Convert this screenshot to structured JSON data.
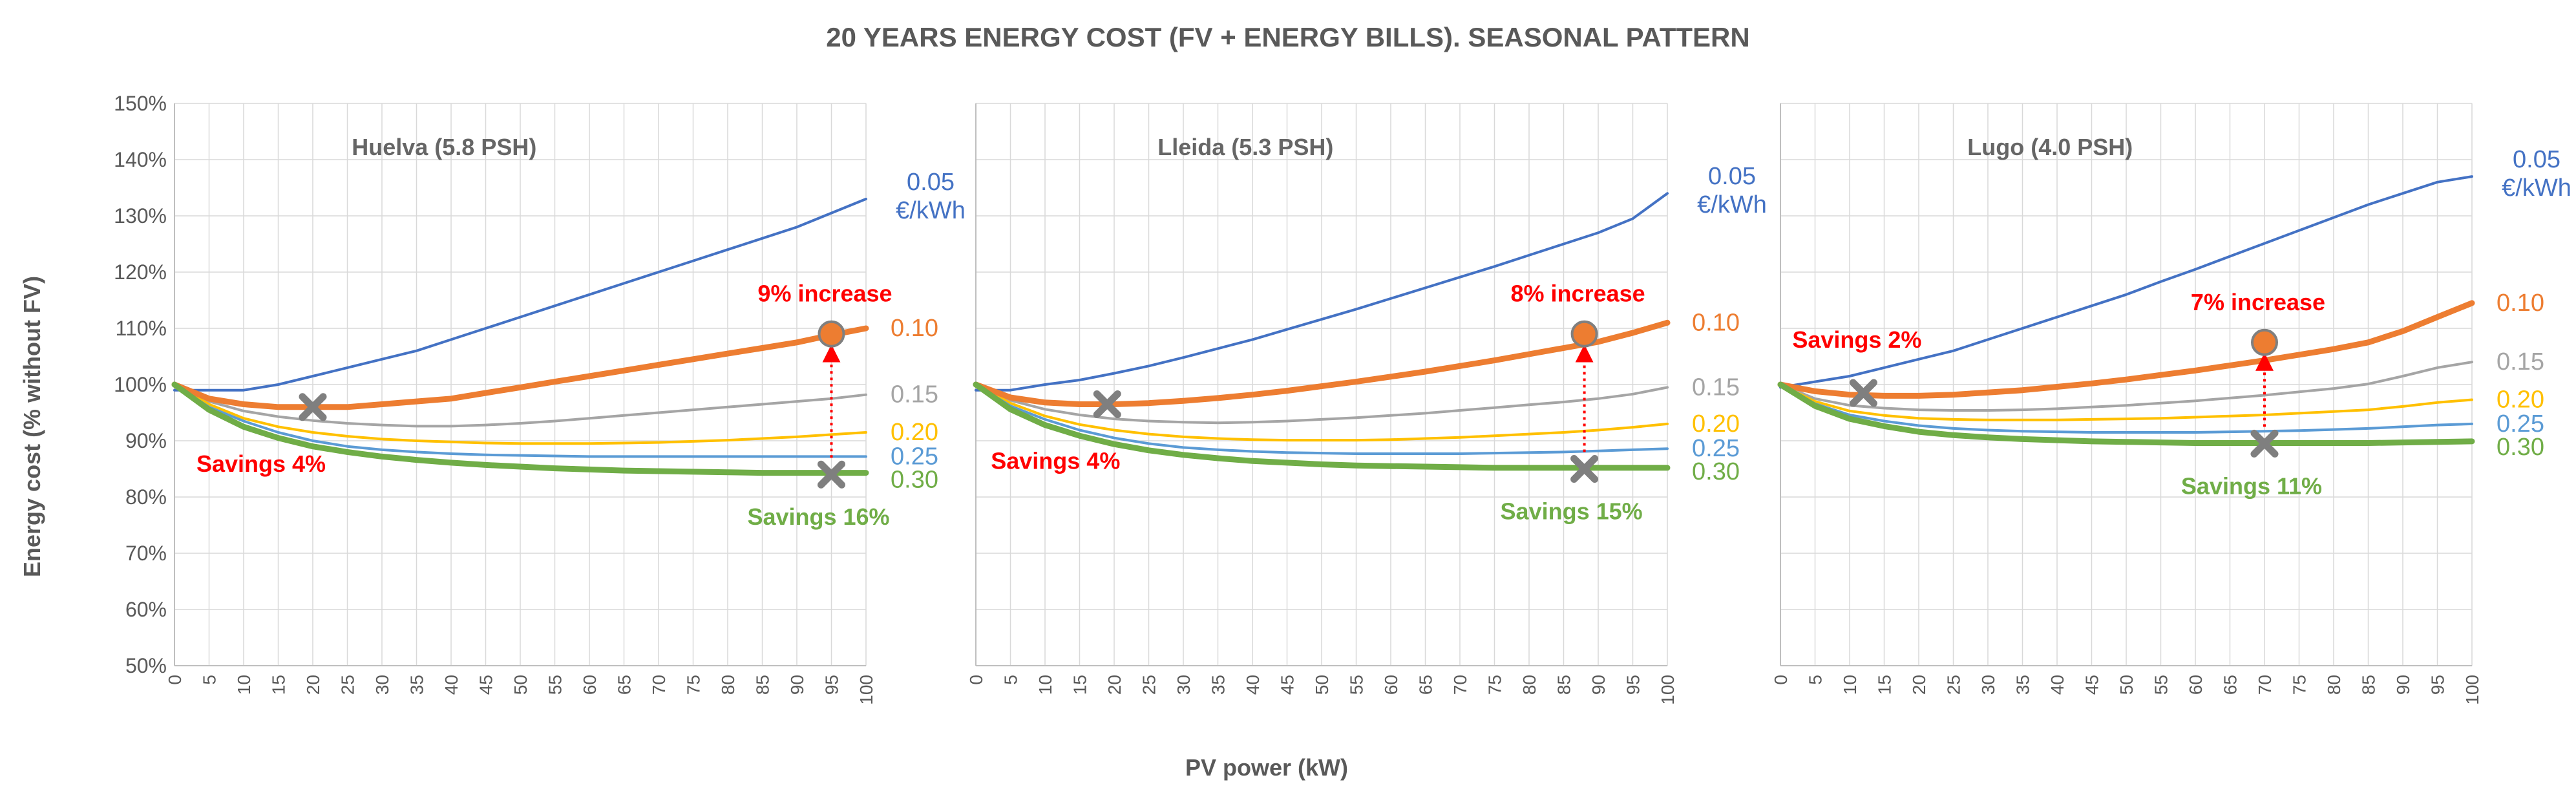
{
  "chart_data": {
    "type": "line",
    "title": "20 YEARS ENERGY COST (FV + ENERGY BILLS). SEASONAL PATTERN",
    "xlabel": "PV power (kW)",
    "ylabel": "Energy cost (% without FV)",
    "ylim": [
      50,
      150
    ],
    "ytick_values": [
      50,
      60,
      70,
      80,
      90,
      100,
      110,
      120,
      130,
      140,
      150
    ],
    "ytick_labels": [
      "50%",
      "60%",
      "70%",
      "80%",
      "90%",
      "100%",
      "110%",
      "120%",
      "130%",
      "140%",
      "150%"
    ],
    "x": [
      0,
      5,
      10,
      15,
      20,
      25,
      30,
      35,
      40,
      45,
      50,
      55,
      60,
      65,
      70,
      75,
      80,
      85,
      90,
      95,
      100
    ],
    "xtick_labels": [
      "0",
      "5",
      "10",
      "15",
      "20",
      "25",
      "30",
      "35",
      "40",
      "45",
      "50",
      "55",
      "60",
      "65",
      "70",
      "75",
      "80",
      "85",
      "90",
      "95",
      "100"
    ],
    "series_colors": {
      "0.05": "#4472c4",
      "0.10": "#ed7d31",
      "0.15": "#a5a5a5",
      "0.20": "#ffc000",
      "0.25": "#5b9bd5",
      "0.30": "#70ad47"
    },
    "annotation_colors": {
      "increase": "#ff0000",
      "savings_red": "#ff0000",
      "savings_green": "#70ad47"
    },
    "panels": [
      {
        "label": "Huelva (5.8 PSH)",
        "series": [
          {
            "name": "0.05",
            "label_line1": "0.05",
            "label_line2": "€/kWh",
            "values": [
              99,
              99,
              99,
              100,
              101.5,
              103,
              104.5,
              106,
              108,
              110,
              112,
              114,
              116,
              118,
              120,
              122,
              124,
              126,
              128,
              130.5,
              133
            ]
          },
          {
            "name": "0.10",
            "values": [
              100,
              97.5,
              96.5,
              96,
              96,
              96,
              96.5,
              97,
              97.5,
              98.5,
              99.5,
              100.5,
              101.5,
              102.5,
              103.5,
              104.5,
              105.5,
              106.5,
              107.5,
              108.8,
              110
            ]
          },
          {
            "name": "0.15",
            "values": [
              100,
              97,
              95.3,
              94.3,
              93.6,
              93.1,
              92.8,
              92.6,
              92.6,
              92.8,
              93.1,
              93.5,
              94,
              94.5,
              95,
              95.5,
              96,
              96.5,
              97,
              97.5,
              98.2
            ]
          },
          {
            "name": "0.20",
            "values": [
              100,
              96.5,
              94,
              92.5,
              91.5,
              90.8,
              90.3,
              90,
              89.8,
              89.6,
              89.5,
              89.5,
              89.5,
              89.6,
              89.7,
              89.9,
              90.1,
              90.4,
              90.7,
              91.1,
              91.5
            ]
          },
          {
            "name": "0.25",
            "values": [
              100,
              96,
              93.5,
              91.5,
              90,
              89,
              88.4,
              88,
              87.7,
              87.5,
              87.4,
              87.3,
              87.2,
              87.2,
              87.2,
              87.2,
              87.2,
              87.2,
              87.2,
              87.2,
              87.2
            ]
          },
          {
            "name": "0.30",
            "values": [
              100,
              95.5,
              92.5,
              90.5,
              89,
              88,
              87.2,
              86.6,
              86.1,
              85.7,
              85.4,
              85.1,
              84.9,
              84.7,
              84.6,
              84.5,
              84.4,
              84.3,
              84.3,
              84.3,
              84.3
            ]
          }
        ],
        "markers": [
          {
            "kind": "x",
            "x": 20,
            "y": 96
          },
          {
            "kind": "circle",
            "x": 95,
            "y": 109
          },
          {
            "kind": "x",
            "x": 95,
            "y": 84
          }
        ],
        "increase_text": "9% increase",
        "savings_low_text": "Savings 4%",
        "savings_high_text": "Savings 16%"
      },
      {
        "label": "Lleida (5.3 PSH)",
        "series": [
          {
            "name": "0.05",
            "label_line1": "0.05",
            "label_line2": "€/kWh",
            "values": [
              99,
              99,
              100,
              100.8,
              102,
              103.3,
              104.8,
              106.4,
              108,
              109.8,
              111.6,
              113.4,
              115.3,
              117.2,
              119.1,
              121,
              123,
              125,
              127,
              129.5,
              134
            ]
          },
          {
            "name": "0.10",
            "values": [
              100,
              97.7,
              96.8,
              96.5,
              96.5,
              96.7,
              97.1,
              97.6,
              98.2,
              98.9,
              99.7,
              100.5,
              101.4,
              102.3,
              103.3,
              104.3,
              105.4,
              106.5,
              107.6,
              109.2,
              111
            ]
          },
          {
            "name": "0.15",
            "values": [
              100,
              97.2,
              95.6,
              94.6,
              93.9,
              93.5,
              93.3,
              93.2,
              93.3,
              93.5,
              93.8,
              94.1,
              94.5,
              94.9,
              95.4,
              95.9,
              96.4,
              96.9,
              97.5,
              98.3,
              99.5
            ]
          },
          {
            "name": "0.20",
            "values": [
              100,
              96.7,
              94.4,
              92.9,
              91.9,
              91.2,
              90.7,
              90.4,
              90.2,
              90.1,
              90.1,
              90.1,
              90.2,
              90.4,
              90.6,
              90.9,
              91.2,
              91.5,
              91.9,
              92.4,
              93
            ]
          },
          {
            "name": "0.25",
            "values": [
              100,
              96.2,
              93.8,
              91.9,
              90.5,
              89.5,
              88.8,
              88.4,
              88.1,
              87.9,
              87.8,
              87.7,
              87.7,
              87.7,
              87.7,
              87.8,
              87.9,
              88,
              88.2,
              88.4,
              88.6
            ]
          },
          {
            "name": "0.30",
            "values": [
              100,
              95.6,
              92.8,
              90.9,
              89.4,
              88.3,
              87.5,
              86.9,
              86.4,
              86.1,
              85.8,
              85.6,
              85.5,
              85.4,
              85.3,
              85.2,
              85.2,
              85.2,
              85.2,
              85.2,
              85.2
            ]
          }
        ],
        "markers": [
          {
            "kind": "x",
            "x": 19,
            "y": 96.5
          },
          {
            "kind": "circle",
            "x": 88,
            "y": 109
          },
          {
            "kind": "x",
            "x": 88,
            "y": 85
          }
        ],
        "increase_text": "8% increase",
        "savings_low_text": "Savings 4%",
        "savings_high_text": "Savings 15%"
      },
      {
        "label": "Lugo (4.0 PSH)",
        "series": [
          {
            "name": "0.05",
            "label_line1": "0.05",
            "label_line2": "€/kWh",
            "values": [
              99.5,
              100.5,
              101.5,
              103,
              104.5,
              106,
              108,
              110,
              112,
              114,
              116,
              118.3,
              120.5,
              122.8,
              125.1,
              127.4,
              129.7,
              132,
              134,
              136,
              137
            ]
          },
          {
            "name": "0.10",
            "values": [
              100,
              98.8,
              98.2,
              98,
              98,
              98.2,
              98.6,
              99,
              99.6,
              100.2,
              100.9,
              101.7,
              102.5,
              103.4,
              104.3,
              105.3,
              106.3,
              107.5,
              109.5,
              112,
              114.5
            ]
          },
          {
            "name": "0.15",
            "values": [
              100,
              97.5,
              96.3,
              95.8,
              95.5,
              95.4,
              95.4,
              95.5,
              95.7,
              96,
              96.3,
              96.7,
              97.1,
              97.6,
              98.1,
              98.7,
              99.3,
              100.1,
              101.5,
              103,
              104
            ]
          },
          {
            "name": "0.20",
            "values": [
              100,
              97,
              95.3,
              94.5,
              94,
              93.8,
              93.7,
              93.7,
              93.7,
              93.8,
              93.9,
              94,
              94.2,
              94.4,
              94.6,
              94.9,
              95.2,
              95.5,
              96.1,
              96.8,
              97.3
            ]
          },
          {
            "name": "0.25",
            "values": [
              100,
              96.6,
              94.6,
              93.5,
              92.7,
              92.2,
              91.9,
              91.7,
              91.6,
              91.5,
              91.5,
              91.5,
              91.5,
              91.6,
              91.7,
              91.8,
              92,
              92.2,
              92.5,
              92.8,
              93
            ]
          },
          {
            "name": "0.30",
            "values": [
              100,
              96.2,
              93.9,
              92.6,
              91.6,
              91,
              90.6,
              90.3,
              90.1,
              89.9,
              89.8,
              89.7,
              89.6,
              89.6,
              89.6,
              89.6,
              89.6,
              89.6,
              89.7,
              89.8,
              89.9
            ]
          }
        ],
        "markers": [
          {
            "kind": "x",
            "x": 12,
            "y": 98.5
          },
          {
            "kind": "circle",
            "x": 70,
            "y": 107.5
          },
          {
            "kind": "x",
            "x": 70,
            "y": 89.5
          }
        ],
        "increase_text": "7% increase",
        "savings_low_text": "Savings 2%",
        "savings_high_text": "Savings 11%"
      }
    ]
  }
}
